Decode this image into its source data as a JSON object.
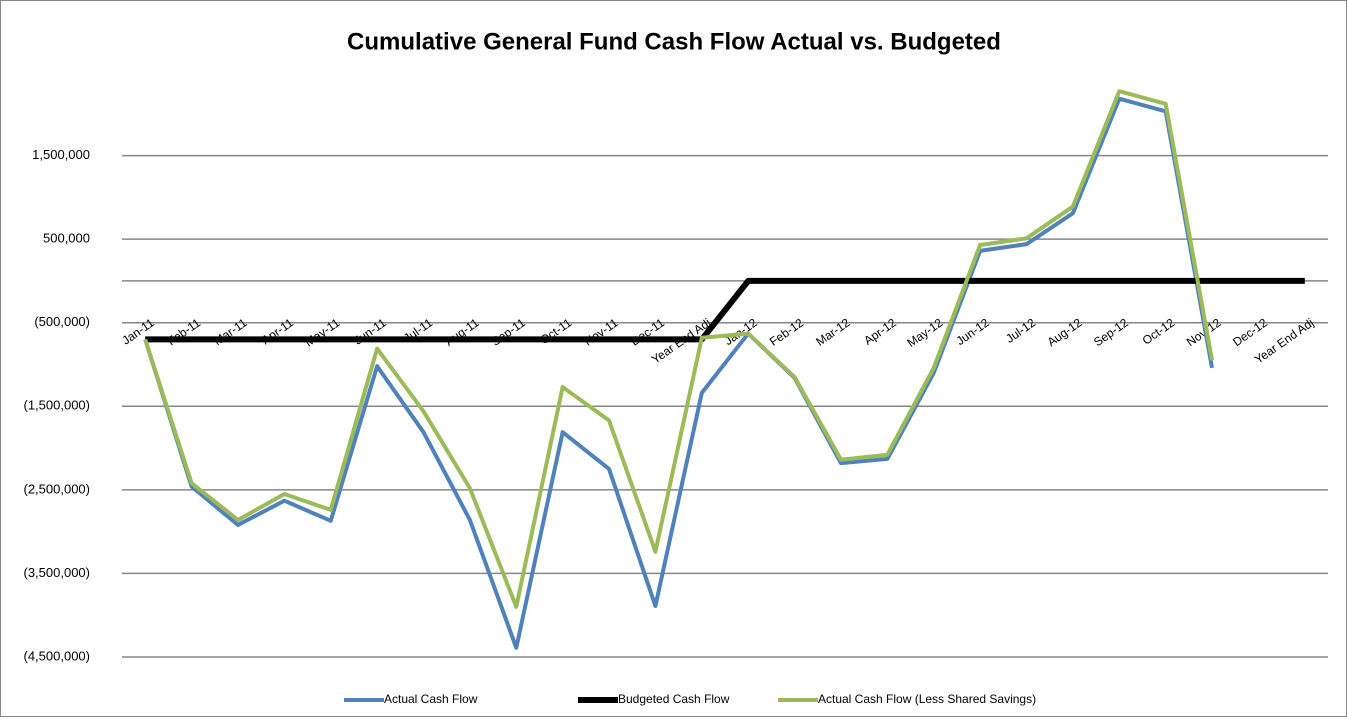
{
  "chart_data": {
    "type": "line",
    "title": "Cumulative General Fund Cash Flow Actual vs. Budgeted",
    "categories": [
      "Jan-11",
      "Feb-11",
      "Mar-11",
      "Apr-11",
      "May-11",
      "Jun-11",
      "Jul-11",
      "Aug-11",
      "Sep-11",
      "Oct-11",
      "Nov-11",
      "Dec-11",
      "Year End Adj",
      "Jan-12",
      "Feb-12",
      "Mar-12",
      "Apr-12",
      "May-12",
      "Jun-12",
      "Jul-12",
      "Aug-12",
      "Sep-12",
      "Oct-12",
      "Nov-12",
      "Dec-12",
      "Year End Adj"
    ],
    "series": [
      {
        "name": "Actual Cash Flow",
        "color": "#4f81bd",
        "width": 4,
        "values": [
          -700000,
          -2460000,
          -2920000,
          -2630000,
          -2870000,
          -1020000,
          -1810000,
          -2860000,
          -4390000,
          -1810000,
          -2250000,
          -3890000,
          -1340000,
          -630000,
          -1160000,
          -2180000,
          -2130000,
          -1100000,
          360000,
          440000,
          810000,
          2180000,
          2030000,
          -1040000,
          null,
          null
        ]
      },
      {
        "name": "Budgeted Cash Flow",
        "color": "#000000",
        "width": 6,
        "values": [
          -700000,
          -700000,
          -700000,
          -700000,
          -700000,
          -700000,
          -700000,
          -700000,
          -700000,
          -700000,
          -700000,
          -700000,
          -700000,
          0,
          0,
          0,
          0,
          0,
          0,
          0,
          0,
          0,
          0,
          0,
          0,
          0
        ]
      },
      {
        "name": "Actual Cash Flow (Less Shared Savings)",
        "color": "#9bbb59",
        "width": 4,
        "values": [
          -700000,
          -2420000,
          -2860000,
          -2550000,
          -2740000,
          -810000,
          -1560000,
          -2480000,
          -3900000,
          -1270000,
          -1670000,
          -3240000,
          -680000,
          -630000,
          -1150000,
          -2140000,
          -2080000,
          -1040000,
          430000,
          510000,
          890000,
          2270000,
          2120000,
          -950000,
          null,
          null
        ]
      }
    ],
    "ylim": [
      -4500000,
      2500000
    ],
    "yticks": [
      {
        "value": 1500000,
        "label": "1,500,000"
      },
      {
        "value": 500000,
        "label": "500,000"
      },
      {
        "value": -500000,
        "label": "(500,000)"
      },
      {
        "value": -1500000,
        "label": "(1,500,000)"
      },
      {
        "value": -2500000,
        "label": "(2,500,000)"
      },
      {
        "value": -3500000,
        "label": "(3,500,000)"
      },
      {
        "value": -4500000,
        "label": "(4,500,000)"
      }
    ],
    "grid": true,
    "legend": "bottom"
  }
}
